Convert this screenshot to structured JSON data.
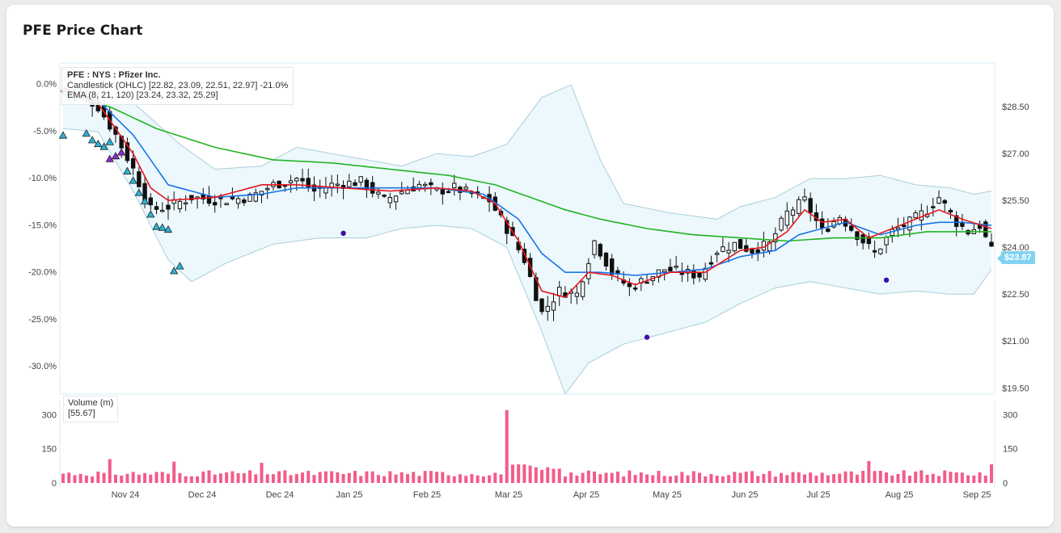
{
  "page": {
    "title": "PFE Price Chart"
  },
  "legend": {
    "title": "PFE : NYS : Pfizer Inc.",
    "candlestick": "Candlestick (OHLC) [22.82, 23.09, 22.51, 22.97] -21.0%",
    "ema": "EMA (8, 21, 120) [23.24, 23.32, 25.29]"
  },
  "volume_legend": {
    "label": "Volume (m)",
    "value": "[55.67]"
  },
  "price_tag": "$23.87",
  "colors": {
    "ema8": "#e8171f",
    "ema21": "#1a73e8",
    "ema120": "#22b322",
    "band_fill": "#ecf8fc",
    "band_line": "#a9cfdb",
    "candle": "#111111",
    "volume": "#f25c8a",
    "signal_cyan": "#2ab4d8",
    "signal_purple": "#8a2ad6",
    "dot": "#3a0fa8",
    "price_tag": "#7fd3f0"
  },
  "chart_data": {
    "type": "candlestick",
    "title": "PFE Price Chart",
    "x_ticks": [
      "Nov 24",
      "Dec 24",
      "Dec 24",
      "Jan 25",
      "Feb 25",
      "Mar 25",
      "Apr 25",
      "May 25",
      "Jun 25",
      "Jul 25",
      "Aug 25",
      "Sep 25"
    ],
    "left_axis": {
      "label": "",
      "ticks": [
        "0.0%",
        "-5.0%",
        "-10.0%",
        "-15.0%",
        "-20.0%",
        "-25.0%",
        "-30.0%"
      ],
      "range_pct": [
        2.2,
        -33
      ]
    },
    "right_axis": {
      "label": "",
      "ticks": [
        "$28.50",
        "$27.00",
        "$25.50",
        "$24.00",
        "$22.50",
        "$21.00",
        "$19.50"
      ],
      "range": [
        19.3,
        29.9
      ]
    },
    "volume_axis": {
      "ticks": [
        "300",
        "150",
        "0"
      ],
      "range": [
        0,
        330
      ]
    },
    "close_anchor_points": [
      [
        0,
        29.0
      ],
      [
        3,
        28.9
      ],
      [
        6,
        28.5
      ],
      [
        9,
        27.6
      ],
      [
        12,
        26.5
      ],
      [
        15,
        25.2
      ],
      [
        18,
        25.3
      ],
      [
        22,
        25.6
      ],
      [
        27,
        25.5
      ],
      [
        32,
        25.6
      ],
      [
        36,
        26.0
      ],
      [
        40,
        26.2
      ],
      [
        43,
        25.8
      ],
      [
        46,
        26.0
      ],
      [
        51,
        26.1
      ],
      [
        55,
        25.5
      ],
      [
        58,
        25.8
      ],
      [
        61,
        26.0
      ],
      [
        64,
        25.8
      ],
      [
        67,
        25.9
      ],
      [
        70,
        25.7
      ],
      [
        73,
        25.5
      ],
      [
        76,
        24.6
      ],
      [
        79,
        23.6
      ],
      [
        82,
        21.9
      ],
      [
        85,
        22.6
      ],
      [
        88,
        22.5
      ],
      [
        91,
        24.2
      ],
      [
        94,
        23.2
      ],
      [
        97,
        22.7
      ],
      [
        100,
        23.0
      ],
      [
        103,
        23.3
      ],
      [
        106,
        23.2
      ],
      [
        109,
        23.1
      ],
      [
        112,
        23.9
      ],
      [
        115,
        24.1
      ],
      [
        118,
        23.9
      ],
      [
        121,
        24.1
      ],
      [
        124,
        25.1
      ],
      [
        127,
        25.5
      ],
      [
        130,
        24.5
      ],
      [
        133,
        25.0
      ],
      [
        136,
        24.4
      ],
      [
        139,
        23.8
      ],
      [
        142,
        24.5
      ],
      [
        145,
        24.8
      ],
      [
        148,
        25.2
      ],
      [
        150,
        25.6
      ],
      [
        153,
        24.8
      ],
      [
        155,
        24.5
      ],
      [
        157,
        24.7
      ],
      [
        159,
        23.87
      ]
    ],
    "ema8_points": [
      [
        0,
        29.1
      ],
      [
        6,
        28.6
      ],
      [
        12,
        27.0
      ],
      [
        15,
        25.9
      ],
      [
        18,
        25.5
      ],
      [
        26,
        25.6
      ],
      [
        34,
        26.0
      ],
      [
        40,
        26.0
      ],
      [
        48,
        25.9
      ],
      [
        56,
        25.8
      ],
      [
        64,
        25.9
      ],
      [
        70,
        25.8
      ],
      [
        74,
        25.4
      ],
      [
        78,
        24.2
      ],
      [
        82,
        22.6
      ],
      [
        86,
        22.4
      ],
      [
        90,
        23.2
      ],
      [
        94,
        23.1
      ],
      [
        98,
        22.8
      ],
      [
        104,
        23.2
      ],
      [
        110,
        23.2
      ],
      [
        116,
        23.9
      ],
      [
        120,
        24.0
      ],
      [
        124,
        24.5
      ],
      [
        127,
        25.2
      ],
      [
        130,
        24.8
      ],
      [
        134,
        24.9
      ],
      [
        138,
        24.3
      ],
      [
        142,
        24.6
      ],
      [
        146,
        24.9
      ],
      [
        150,
        25.2
      ],
      [
        154,
        24.9
      ],
      [
        159,
        24.6
      ]
    ],
    "ema21_points": [
      [
        0,
        29.0
      ],
      [
        6,
        28.7
      ],
      [
        12,
        27.6
      ],
      [
        18,
        26.0
      ],
      [
        26,
        25.6
      ],
      [
        34,
        25.7
      ],
      [
        40,
        25.9
      ],
      [
        48,
        25.9
      ],
      [
        56,
        25.9
      ],
      [
        64,
        25.9
      ],
      [
        72,
        25.7
      ],
      [
        78,
        24.9
      ],
      [
        82,
        23.8
      ],
      [
        86,
        23.2
      ],
      [
        92,
        23.2
      ],
      [
        98,
        23.1
      ],
      [
        104,
        23.2
      ],
      [
        110,
        23.3
      ],
      [
        116,
        23.7
      ],
      [
        122,
        23.9
      ],
      [
        126,
        24.4
      ],
      [
        130,
        24.6
      ],
      [
        134,
        24.8
      ],
      [
        140,
        24.4
      ],
      [
        146,
        24.7
      ],
      [
        150,
        24.8
      ],
      [
        154,
        24.8
      ],
      [
        159,
        24.7
      ]
    ],
    "ema120_points": [
      [
        0,
        28.9
      ],
      [
        8,
        28.5
      ],
      [
        16,
        27.8
      ],
      [
        26,
        27.2
      ],
      [
        36,
        26.8
      ],
      [
        46,
        26.7
      ],
      [
        56,
        26.5
      ],
      [
        66,
        26.3
      ],
      [
        74,
        26.0
      ],
      [
        80,
        25.6
      ],
      [
        86,
        25.2
      ],
      [
        92,
        24.9
      ],
      [
        100,
        24.6
      ],
      [
        108,
        24.4
      ],
      [
        116,
        24.3
      ],
      [
        124,
        24.2
      ],
      [
        132,
        24.3
      ],
      [
        140,
        24.3
      ],
      [
        148,
        24.5
      ],
      [
        159,
        24.5
      ]
    ],
    "band_upper_points": [
      [
        0,
        29.7
      ],
      [
        6,
        29.6
      ],
      [
        14,
        28.3
      ],
      [
        20,
        27.3
      ],
      [
        26,
        26.5
      ],
      [
        34,
        26.6
      ],
      [
        40,
        27.2
      ],
      [
        46,
        27.0
      ],
      [
        52,
        26.8
      ],
      [
        58,
        26.6
      ],
      [
        64,
        27.0
      ],
      [
        70,
        26.9
      ],
      [
        76,
        27.3
      ],
      [
        82,
        28.8
      ],
      [
        87,
        29.2
      ],
      [
        92,
        26.8
      ],
      [
        96,
        25.4
      ],
      [
        104,
        25.1
      ],
      [
        112,
        24.9
      ],
      [
        116,
        25.3
      ],
      [
        122,
        25.6
      ],
      [
        128,
        26.2
      ],
      [
        134,
        26.2
      ],
      [
        140,
        26.3
      ],
      [
        146,
        26.0
      ],
      [
        152,
        25.9
      ],
      [
        156,
        25.7
      ],
      [
        159,
        25.8
      ]
    ],
    "band_lower_points": [
      [
        0,
        27.8
      ],
      [
        6,
        27.7
      ],
      [
        12,
        25.8
      ],
      [
        18,
        23.6
      ],
      [
        22,
        22.9
      ],
      [
        28,
        23.5
      ],
      [
        36,
        24.1
      ],
      [
        44,
        24.3
      ],
      [
        52,
        24.3
      ],
      [
        58,
        24.6
      ],
      [
        64,
        24.7
      ],
      [
        70,
        24.6
      ],
      [
        76,
        24.0
      ],
      [
        82,
        21.3
      ],
      [
        86,
        19.3
      ],
      [
        90,
        20.3
      ],
      [
        96,
        20.9
      ],
      [
        104,
        21.3
      ],
      [
        110,
        21.6
      ],
      [
        116,
        22.2
      ],
      [
        122,
        22.7
      ],
      [
        128,
        22.9
      ],
      [
        134,
        22.7
      ],
      [
        140,
        22.5
      ],
      [
        146,
        22.6
      ],
      [
        152,
        22.5
      ],
      [
        156,
        22.5
      ],
      [
        159,
        23.3
      ]
    ],
    "signal_markers": {
      "cyan_triangles_pct": [
        [
          0,
          -5.5
        ],
        [
          4,
          -5.3
        ],
        [
          5,
          -6.0
        ],
        [
          6,
          -6.4
        ],
        [
          7,
          -6.7
        ],
        [
          8,
          -6.2
        ],
        [
          11,
          -9.3
        ],
        [
          12,
          -10.3
        ],
        [
          13,
          -11.6
        ],
        [
          14,
          -12.5
        ],
        [
          15,
          -13.9
        ],
        [
          16,
          -15.2
        ],
        [
          17,
          -15.3
        ],
        [
          18,
          -15.5
        ],
        [
          19,
          -19.9
        ],
        [
          20,
          -19.4
        ]
      ],
      "purple_triangles_pct": [
        [
          8,
          -8.0
        ],
        [
          9,
          -7.7
        ],
        [
          10,
          -7.3
        ]
      ],
      "dots_price": [
        [
          48,
          24.45
        ],
        [
          100,
          21.12
        ],
        [
          141,
          22.95
        ]
      ]
    },
    "volume_series_m": {
      "note": "daily volume in millions, one bar per session",
      "spike_index": 76,
      "spike_value": 320,
      "last_value": 55.67
    }
  }
}
